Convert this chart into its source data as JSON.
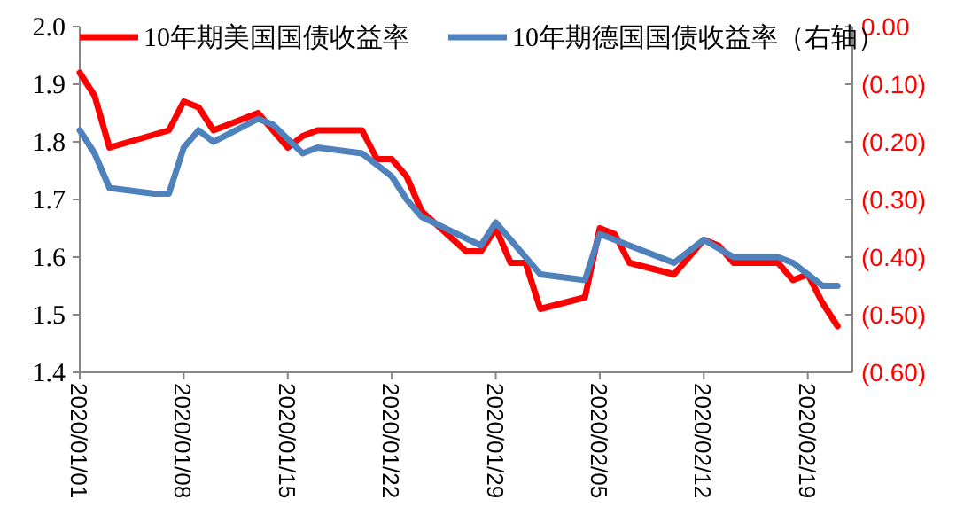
{
  "chart_data": {
    "type": "line",
    "legend": "top",
    "grid": false,
    "marker": "none",
    "line_style": "solid",
    "xlim": [
      "2020-01-01",
      "2020-02-22"
    ],
    "xticks": [
      {
        "value": "2020-01-01",
        "label": "2020/01/01"
      },
      {
        "value": "2020-01-08",
        "label": "2020/01/08"
      },
      {
        "value": "2020-01-15",
        "label": "2020/01/15"
      },
      {
        "value": "2020-01-22",
        "label": "2020/01/22"
      },
      {
        "value": "2020-01-29",
        "label": "2020/01/29"
      },
      {
        "value": "2020-02-05",
        "label": "2020/02/05"
      },
      {
        "value": "2020-02-12",
        "label": "2020/02/12"
      },
      {
        "value": "2020-02-19",
        "label": "2020/02/19"
      }
    ],
    "ylim": [
      1.4,
      2.0
    ],
    "yticks": [
      {
        "value": 1.4,
        "label": "1.4"
      },
      {
        "value": 1.5,
        "label": "1.5"
      },
      {
        "value": 1.6,
        "label": "1.6"
      },
      {
        "value": 1.7,
        "label": "1.7"
      },
      {
        "value": 1.8,
        "label": "1.8"
      },
      {
        "value": 1.9,
        "label": "1.9"
      },
      {
        "value": 2.0,
        "label": "2.0"
      }
    ],
    "y2lim": [
      -0.6,
      0
    ],
    "y2ticks": [
      {
        "value": -0.6,
        "label": "(0.60)"
      },
      {
        "value": -0.5,
        "label": "(0.50)"
      },
      {
        "value": -0.4,
        "label": "(0.40)"
      },
      {
        "value": -0.3,
        "label": "(0.30)"
      },
      {
        "value": -0.2,
        "label": "(0.20)"
      },
      {
        "value": -0.1,
        "label": "(0.10)"
      },
      {
        "value": 0,
        "label": "0.00"
      }
    ],
    "series": [
      {
        "name": "10年期美国国债收益率",
        "color": "#ff0000",
        "x": [
          "2020-01-01",
          "2020-01-02",
          "2020-01-03",
          "2020-01-07",
          "2020-01-08",
          "2020-01-09",
          "2020-01-10",
          "2020-01-13",
          "2020-01-15",
          "2020-01-16",
          "2020-01-17",
          "2020-01-20",
          "2020-01-21",
          "2020-01-22",
          "2020-01-23",
          "2020-01-24",
          "2020-01-27",
          "2020-01-28",
          "2020-01-29",
          "2020-01-30",
          "2020-01-31",
          "2020-02-01",
          "2020-02-04",
          "2020-02-05",
          "2020-02-06",
          "2020-02-07",
          "2020-02-10",
          "2020-02-12",
          "2020-02-13",
          "2020-02-14",
          "2020-02-17",
          "2020-02-18",
          "2020-02-19",
          "2020-02-20",
          "2020-02-21"
        ],
        "values": [
          1.92,
          1.88,
          1.79,
          1.82,
          1.87,
          1.86,
          1.82,
          1.85,
          1.79,
          1.81,
          1.82,
          1.82,
          1.77,
          1.77,
          1.74,
          1.68,
          1.61,
          1.61,
          1.65,
          1.59,
          1.59,
          1.51,
          1.53,
          1.65,
          1.64,
          1.59,
          1.57,
          1.63,
          1.62,
          1.59,
          1.59,
          1.56,
          1.57,
          1.52,
          1.48
        ]
      },
      {
        "name": "10年期德国国债收益率（右轴）",
        "color": "#4f81bd",
        "axis": "y2",
        "x": [
          "2020-01-01",
          "2020-01-02",
          "2020-01-03",
          "2020-01-06",
          "2020-01-07",
          "2020-01-08",
          "2020-01-09",
          "2020-01-10",
          "2020-01-13",
          "2020-01-14",
          "2020-01-16",
          "2020-01-17",
          "2020-01-20",
          "2020-01-21",
          "2020-01-22",
          "2020-01-23",
          "2020-01-24",
          "2020-01-28",
          "2020-01-29",
          "2020-02-01",
          "2020-02-04",
          "2020-02-05",
          "2020-02-07",
          "2020-02-10",
          "2020-02-12",
          "2020-02-14",
          "2020-02-17",
          "2020-02-18",
          "2020-02-19",
          "2020-02-20",
          "2020-02-21"
        ],
        "values": [
          -0.18,
          -0.22,
          -0.28,
          -0.29,
          -0.29,
          -0.21,
          -0.18,
          -0.2,
          -0.16,
          -0.17,
          -0.22,
          -0.21,
          -0.22,
          -0.24,
          -0.26,
          -0.3,
          -0.33,
          -0.38,
          -0.34,
          -0.43,
          -0.44,
          -0.36,
          -0.38,
          -0.41,
          -0.37,
          -0.4,
          -0.4,
          -0.41,
          -0.43,
          -0.45,
          -0.45
        ]
      }
    ]
  }
}
